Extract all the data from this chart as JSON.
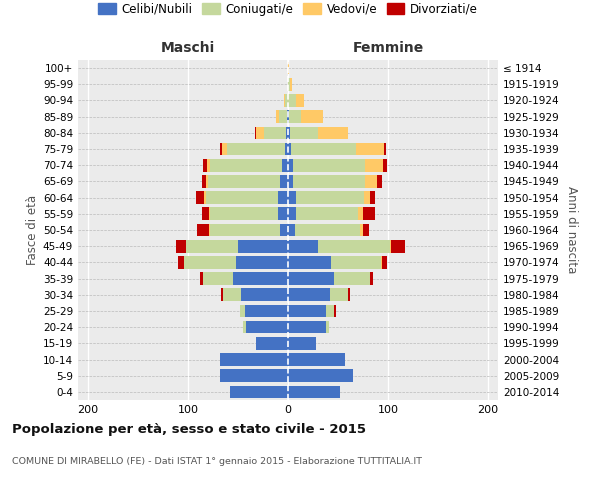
{
  "age_groups": [
    "100+",
    "95-99",
    "90-94",
    "85-89",
    "80-84",
    "75-79",
    "70-74",
    "65-69",
    "60-64",
    "55-59",
    "50-54",
    "45-49",
    "40-44",
    "35-39",
    "30-34",
    "25-29",
    "20-24",
    "15-19",
    "10-14",
    "5-9",
    "0-4"
  ],
  "birth_years": [
    "≤ 1914",
    "1915-1919",
    "1920-1924",
    "1925-1929",
    "1930-1934",
    "1935-1939",
    "1940-1944",
    "1945-1949",
    "1950-1954",
    "1955-1959",
    "1960-1964",
    "1965-1969",
    "1970-1974",
    "1975-1979",
    "1980-1984",
    "1985-1989",
    "1990-1994",
    "1995-1999",
    "2000-2004",
    "2005-2009",
    "2010-2014"
  ],
  "males": {
    "celibi": [
      0,
      0,
      0,
      1,
      2,
      3,
      6,
      8,
      10,
      10,
      8,
      50,
      52,
      55,
      47,
      43,
      42,
      32,
      68,
      68,
      58
    ],
    "coniugati": [
      0,
      0,
      3,
      8,
      22,
      58,
      72,
      72,
      72,
      68,
      70,
      52,
      52,
      30,
      18,
      5,
      3,
      0,
      0,
      0,
      0
    ],
    "vedovi": [
      0,
      0,
      1,
      3,
      8,
      5,
      3,
      2,
      2,
      1,
      1,
      0,
      0,
      0,
      0,
      0,
      0,
      0,
      0,
      0,
      0
    ],
    "divorziati": [
      0,
      0,
      0,
      0,
      1,
      2,
      4,
      4,
      8,
      7,
      12,
      10,
      6,
      3,
      2,
      0,
      0,
      0,
      0,
      0,
      0
    ]
  },
  "females": {
    "nubili": [
      0,
      0,
      0,
      1,
      2,
      3,
      5,
      5,
      8,
      8,
      7,
      30,
      43,
      46,
      42,
      38,
      38,
      28,
      57,
      65,
      52
    ],
    "coniugate": [
      0,
      2,
      8,
      12,
      28,
      65,
      72,
      72,
      68,
      62,
      65,
      72,
      50,
      36,
      18,
      8,
      3,
      0,
      0,
      0,
      0
    ],
    "vedove": [
      1,
      2,
      8,
      22,
      30,
      28,
      18,
      12,
      6,
      5,
      3,
      1,
      1,
      0,
      0,
      0,
      0,
      0,
      0,
      0,
      0
    ],
    "divorziate": [
      0,
      0,
      0,
      0,
      0,
      2,
      4,
      5,
      5,
      12,
      6,
      14,
      5,
      3,
      2,
      2,
      0,
      0,
      0,
      0,
      0
    ]
  },
  "colors": {
    "celibi": "#4472c4",
    "coniugati": "#c5d89d",
    "vedovi": "#ffc966",
    "divorziati": "#c00000"
  },
  "xlim": [
    -210,
    210
  ],
  "xticks": [
    -200,
    -100,
    0,
    100,
    200
  ],
  "xticklabels": [
    "200",
    "100",
    "0",
    "100",
    "200"
  ],
  "title": "Popolazione per età, sesso e stato civile - 2015",
  "subtitle": "COMUNE DI MIRABELLO (FE) - Dati ISTAT 1° gennaio 2015 - Elaborazione TUTTITALIA.IT",
  "ylabel_left": "Fasce di età",
  "ylabel_right": "Anni di nascita",
  "header_left": "Maschi",
  "header_right": "Femmine",
  "legend_labels": [
    "Celibi/Nubili",
    "Coniugati/e",
    "Vedovi/e",
    "Divorziati/e"
  ]
}
